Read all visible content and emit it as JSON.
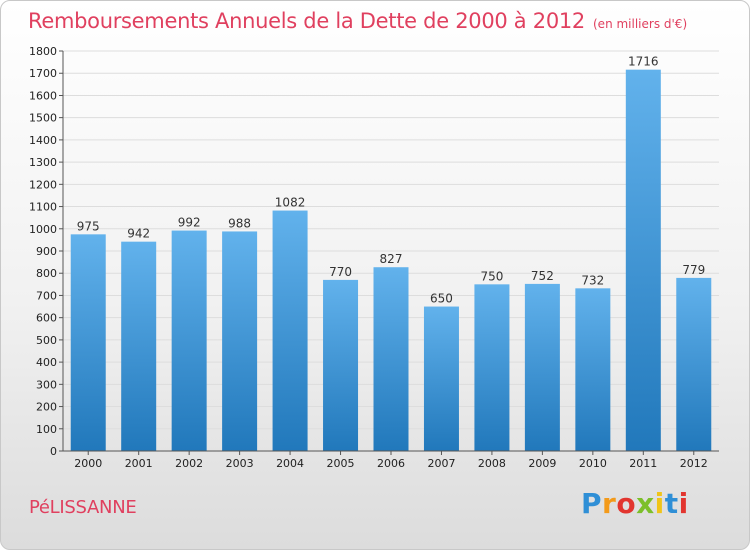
{
  "page": {
    "title": "Remboursements Annuels de la Dette de 2000 à 2012",
    "unit_note": "(en milliers d'€)",
    "place": "PéLISSANNE",
    "logo_text": "Proxiti"
  },
  "colors": {
    "title": "#e0405f",
    "bar_top": "#62b2ec",
    "bar_bottom": "#2178bb",
    "grid": "#dddddd"
  },
  "chart_data": {
    "type": "bar",
    "title": "Remboursements Annuels de la Dette de 2000 à 2012",
    "categories": [
      "2000",
      "2001",
      "2002",
      "2003",
      "2004",
      "2005",
      "2006",
      "2007",
      "2008",
      "2009",
      "2010",
      "2011",
      "2012"
    ],
    "values": [
      975,
      942,
      992,
      988,
      1082,
      770,
      827,
      650,
      750,
      752,
      732,
      1716,
      779
    ],
    "ylim": [
      0,
      1800
    ],
    "y_ticks": [
      0,
      100,
      200,
      300,
      400,
      500,
      600,
      700,
      800,
      900,
      1000,
      1100,
      1200,
      1300,
      1400,
      1500,
      1600,
      1700,
      1800
    ],
    "grid": true,
    "legend": "none"
  }
}
